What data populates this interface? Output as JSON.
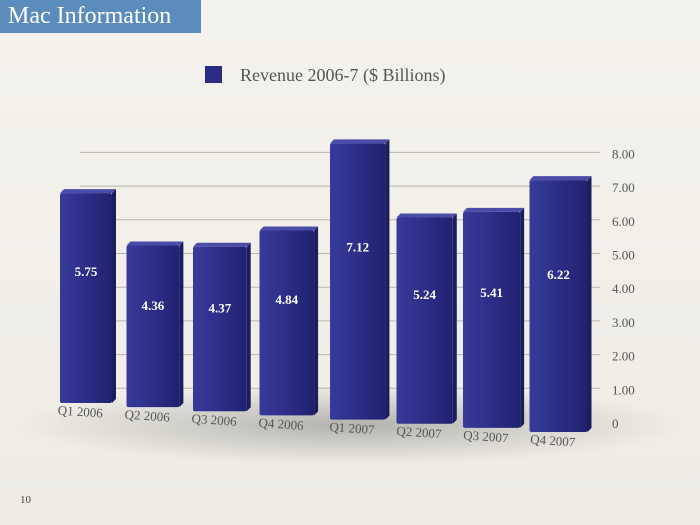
{
  "slide": {
    "title": "Mac Information",
    "page_number": "10"
  },
  "chart_data": {
    "type": "bar",
    "legend": "Revenue 2006-7 ($ Billions)",
    "legend_position": "top",
    "categories": [
      "Q1 2006",
      "Q2 2006",
      "Q3 2006",
      "Q4 2006",
      "Q1 2007",
      "Q2 2007",
      "Q3 2007",
      "Q4 2007"
    ],
    "series": [
      {
        "name": "Revenue 2006-7 ($ Billions)",
        "values": [
          5.75,
          4.36,
          4.37,
          4.84,
          7.12,
          5.24,
          5.41,
          6.22
        ]
      }
    ],
    "value_labels": [
      "5.75",
      "4.36",
      "4.37",
      "4.84",
      "7.12",
      "5.24",
      "5.41",
      "6.22"
    ],
    "y_ticks": [
      "0",
      "1.00",
      "2.00",
      "3.00",
      "4.00",
      "5.00",
      "6.00",
      "7.00",
      "8.00"
    ],
    "ylim": [
      0,
      8
    ],
    "grid": true,
    "colors": {
      "bar": "#2b2d85",
      "bar_side": "#1c1d5c",
      "bar_top": "#4a4ca8",
      "grid": "#b9b6ad",
      "axis_text": "#555555"
    }
  }
}
